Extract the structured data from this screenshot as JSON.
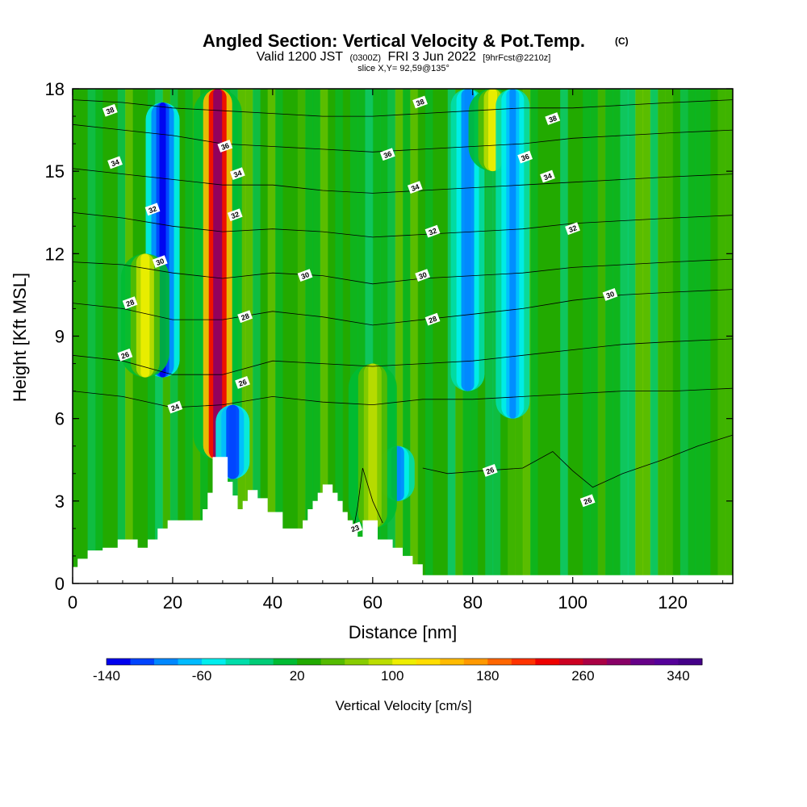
{
  "chart_data": {
    "type": "heatmap",
    "title": "Angled Section: Vertical Velocity & Pot.Temp.",
    "title_mark": "(C)",
    "subtitle": {
      "prefix": "Valid 1200 JST",
      "utc": "(0300Z)",
      "date": "FRI 3 Jun 2022",
      "forecast": "[9hrFcst@2210z]"
    },
    "slice": "slice X,Y= 92,59@135°",
    "xlabel": "Distance [nm]",
    "ylabel": "Height [Kft MSL]",
    "xlim": [
      0,
      132
    ],
    "ylim": [
      0,
      18
    ],
    "x_ticks": [
      0,
      20,
      40,
      60,
      80,
      100,
      120
    ],
    "y_ticks": [
      0,
      3,
      6,
      9,
      12,
      15,
      18
    ],
    "colorbar": {
      "title": "Vertical Velocity [cm/s]",
      "min": -140,
      "max": 360,
      "step": 20,
      "tick_values": [
        -140,
        -60,
        20,
        100,
        180,
        260,
        340
      ],
      "colors": [
        "#0000ee",
        "#0044ff",
        "#0088ff",
        "#00bbff",
        "#00eeee",
        "#00ddaa",
        "#00cc77",
        "#00bb33",
        "#22aa00",
        "#55bb00",
        "#88cc00",
        "#bbdd00",
        "#eeee00",
        "#ffdd00",
        "#ffbb00",
        "#ff9900",
        "#ff6600",
        "#ff3300",
        "#ee0000",
        "#cc0022",
        "#aa0044",
        "#880066",
        "#660088",
        "#550099",
        "#440088"
      ]
    },
    "velocity_features": [
      {
        "x": 18,
        "value": -140,
        "y_from": 7.5,
        "y_to": 17.5
      },
      {
        "x": 29,
        "value": 280,
        "y_from": 4.5,
        "y_to": 18
      },
      {
        "x": 14.5,
        "value": 100,
        "y_from": 7.5,
        "y_to": 12
      },
      {
        "x": 32,
        "value": -120,
        "y_from": 3.8,
        "y_to": 6.5
      },
      {
        "x": 65,
        "value": -100,
        "y_from": 3,
        "y_to": 5
      },
      {
        "x": 79,
        "value": -100,
        "y_from": 7,
        "y_to": 18
      },
      {
        "x": 84,
        "value": 100,
        "y_from": 15,
        "y_to": 18
      },
      {
        "x": 88,
        "value": -90,
        "y_from": 6,
        "y_to": 18
      },
      {
        "x": 60,
        "value": 80,
        "y_from": 2,
        "y_to": 8
      }
    ],
    "terrain_heights": [
      [
        0,
        0.6
      ],
      [
        1,
        0.9
      ],
      [
        3,
        1.2
      ],
      [
        6,
        1.3
      ],
      [
        9,
        1.6
      ],
      [
        13,
        1.3
      ],
      [
        15,
        1.6
      ],
      [
        17,
        2.0
      ],
      [
        19,
        2.3
      ],
      [
        25,
        2.3
      ],
      [
        26,
        2.7
      ],
      [
        27,
        3.3
      ],
      [
        28,
        4.6
      ],
      [
        31,
        3.7
      ],
      [
        32,
        3.2
      ],
      [
        33,
        2.7
      ],
      [
        34,
        3.0
      ],
      [
        35,
        3.4
      ],
      [
        37,
        3.1
      ],
      [
        39,
        2.6
      ],
      [
        42,
        2.0
      ],
      [
        45,
        2.0
      ],
      [
        46,
        2.3
      ],
      [
        47,
        2.7
      ],
      [
        48,
        3.0
      ],
      [
        49,
        3.3
      ],
      [
        50,
        3.6
      ],
      [
        52,
        3.3
      ],
      [
        53,
        3.0
      ],
      [
        54,
        2.6
      ],
      [
        55,
        2.3
      ],
      [
        56,
        2.0
      ],
      [
        57,
        1.7
      ],
      [
        58,
        2.3
      ],
      [
        61,
        1.6
      ],
      [
        64,
        1.3
      ],
      [
        66,
        1.0
      ],
      [
        68,
        0.7
      ],
      [
        70,
        0.3
      ],
      [
        132,
        0.3
      ]
    ],
    "isentropes": [
      {
        "value": "24",
        "pts": [
          [
            0,
            7.0
          ],
          [
            10,
            6.8
          ],
          [
            20,
            6.4
          ],
          [
            30,
            6.5
          ],
          [
            40,
            6.8
          ],
          [
            50,
            6.6
          ],
          [
            60,
            6.5
          ],
          [
            70,
            6.7
          ],
          [
            80,
            6.7
          ],
          [
            90,
            6.8
          ],
          [
            100,
            6.9
          ],
          [
            110,
            7.0
          ],
          [
            120,
            7.0
          ],
          [
            132,
            7.1
          ]
        ],
        "labels": [
          [
            20.5,
            6.4
          ]
        ]
      },
      {
        "value": "26",
        "pts": [
          [
            0,
            8.3
          ],
          [
            10,
            8.1
          ],
          [
            20,
            7.6
          ],
          [
            30,
            7.6
          ],
          [
            40,
            8.1
          ],
          [
            50,
            8.0
          ],
          [
            60,
            7.9
          ],
          [
            70,
            8.0
          ],
          [
            80,
            8.1
          ],
          [
            90,
            8.3
          ],
          [
            100,
            8.5
          ],
          [
            110,
            8.7
          ],
          [
            120,
            8.8
          ],
          [
            132,
            8.9
          ]
        ],
        "labels": [
          [
            10.5,
            8.3
          ],
          [
            34,
            7.3
          ]
        ]
      },
      {
        "value": "28",
        "pts": [
          [
            0,
            10.2
          ],
          [
            10,
            10.0
          ],
          [
            20,
            9.6
          ],
          [
            30,
            9.6
          ],
          [
            40,
            9.9
          ],
          [
            50,
            9.7
          ],
          [
            60,
            9.4
          ],
          [
            70,
            9.6
          ],
          [
            80,
            9.8
          ],
          [
            90,
            10.0
          ],
          [
            100,
            10.3
          ],
          [
            110,
            10.5
          ],
          [
            120,
            10.6
          ],
          [
            132,
            10.7
          ]
        ],
        "labels": [
          [
            11.5,
            10.2
          ],
          [
            34.5,
            9.7
          ],
          [
            72,
            9.6
          ]
        ]
      },
      {
        "value": "30",
        "pts": [
          [
            0,
            11.7
          ],
          [
            10,
            11.6
          ],
          [
            20,
            11.3
          ],
          [
            30,
            11.1
          ],
          [
            40,
            11.3
          ],
          [
            50,
            11.2
          ],
          [
            60,
            10.9
          ],
          [
            70,
            11.1
          ],
          [
            80,
            11.2
          ],
          [
            90,
            11.3
          ],
          [
            100,
            11.5
          ],
          [
            110,
            11.6
          ],
          [
            120,
            11.7
          ],
          [
            132,
            11.8
          ]
        ],
        "labels": [
          [
            17.5,
            11.7
          ],
          [
            46.5,
            11.2
          ],
          [
            70,
            11.2
          ],
          [
            107.5,
            10.5
          ]
        ]
      },
      {
        "value": "32",
        "pts": [
          [
            0,
            13.5
          ],
          [
            10,
            13.3
          ],
          [
            20,
            13.0
          ],
          [
            30,
            12.8
          ],
          [
            40,
            12.9
          ],
          [
            50,
            12.8
          ],
          [
            60,
            12.6
          ],
          [
            70,
            12.7
          ],
          [
            80,
            12.8
          ],
          [
            90,
            12.9
          ],
          [
            100,
            13.1
          ],
          [
            110,
            13.2
          ],
          [
            120,
            13.3
          ],
          [
            132,
            13.4
          ]
        ],
        "labels": [
          [
            16,
            13.6
          ],
          [
            32.5,
            13.4
          ],
          [
            72,
            12.8
          ],
          [
            100,
            12.9
          ]
        ]
      },
      {
        "value": "34",
        "pts": [
          [
            0,
            15.1
          ],
          [
            10,
            14.9
          ],
          [
            20,
            14.7
          ],
          [
            30,
            14.5
          ],
          [
            40,
            14.5
          ],
          [
            50,
            14.3
          ],
          [
            60,
            14.2
          ],
          [
            70,
            14.3
          ],
          [
            80,
            14.4
          ],
          [
            90,
            14.5
          ],
          [
            100,
            14.6
          ],
          [
            110,
            14.7
          ],
          [
            120,
            14.8
          ],
          [
            132,
            14.9
          ]
        ],
        "labels": [
          [
            8.5,
            15.3
          ],
          [
            33,
            14.9
          ],
          [
            68.5,
            14.4
          ],
          [
            95,
            14.8
          ]
        ]
      },
      {
        "value": "36",
        "pts": [
          [
            0,
            16.7
          ],
          [
            10,
            16.5
          ],
          [
            20,
            16.3
          ],
          [
            30,
            16.0
          ],
          [
            40,
            15.9
          ],
          [
            50,
            15.8
          ],
          [
            60,
            15.7
          ],
          [
            70,
            15.8
          ],
          [
            80,
            15.9
          ],
          [
            90,
            16.0
          ],
          [
            100,
            16.2
          ],
          [
            110,
            16.3
          ],
          [
            120,
            16.4
          ],
          [
            132,
            16.5
          ]
        ],
        "labels": [
          [
            30.5,
            15.9
          ],
          [
            63,
            15.6
          ],
          [
            90.5,
            15.5
          ]
        ]
      },
      {
        "value": "38",
        "pts": [
          [
            0,
            17.6
          ],
          [
            10,
            17.5
          ],
          [
            20,
            17.3
          ],
          [
            30,
            17.2
          ],
          [
            40,
            17.1
          ],
          [
            50,
            17.0
          ],
          [
            60,
            17.0
          ],
          [
            70,
            17.1
          ],
          [
            80,
            17.2
          ],
          [
            90,
            17.3
          ],
          [
            100,
            17.3
          ],
          [
            110,
            17.4
          ],
          [
            120,
            17.5
          ],
          [
            132,
            17.6
          ]
        ],
        "labels": [
          [
            7.5,
            17.2
          ],
          [
            69.5,
            17.5
          ],
          [
            96,
            16.9
          ]
        ]
      },
      {
        "value": "26",
        "pts": [
          [
            70,
            4.2
          ],
          [
            75,
            4.0
          ],
          [
            82,
            4.1
          ],
          [
            90,
            4.2
          ],
          [
            96,
            4.8
          ],
          [
            100,
            4.1
          ],
          [
            104,
            3.5
          ],
          [
            110,
            4.0
          ],
          [
            118,
            4.5
          ],
          [
            125,
            5.0
          ],
          [
            132,
            5.4
          ]
        ],
        "labels": [
          [
            83.5,
            4.1
          ],
          [
            103,
            3.0
          ]
        ]
      },
      {
        "value": "23",
        "pts": [
          [
            56,
            1.8
          ],
          [
            57,
            2.8
          ],
          [
            58,
            4.2
          ],
          [
            60,
            3.0
          ],
          [
            62,
            2.2
          ]
        ],
        "labels": [
          [
            56.5,
            2.0
          ]
        ]
      }
    ]
  }
}
